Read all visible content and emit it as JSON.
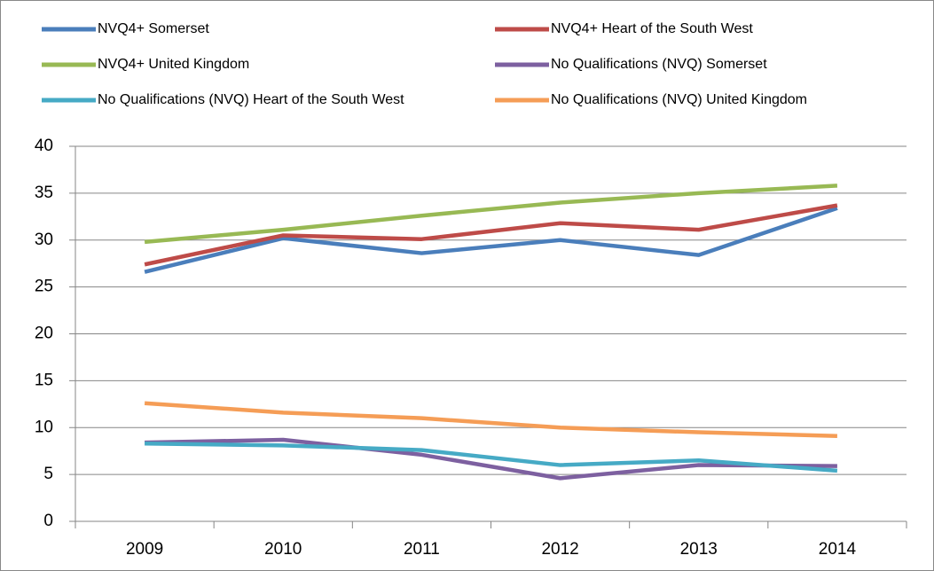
{
  "chart_data": {
    "type": "line",
    "categories": [
      "2009",
      "2010",
      "2011",
      "2012",
      "2013",
      "2014"
    ],
    "series": [
      {
        "name": "NVQ4+ Somerset",
        "color": "#4a7ebb",
        "values": [
          26.6,
          30.2,
          28.6,
          30.0,
          28.4,
          33.4
        ]
      },
      {
        "name": "NVQ4+ Heart of the South West",
        "color": "#be4b48",
        "values": [
          27.4,
          30.5,
          30.1,
          31.8,
          31.1,
          33.7
        ]
      },
      {
        "name": "NVQ4+ United Kingdom",
        "color": "#98b954",
        "values": [
          29.8,
          31.1,
          32.6,
          34.0,
          35.0,
          35.8
        ]
      },
      {
        "name": "No Qualifications (NVQ) Somerset",
        "color": "#7d60a0",
        "values": [
          8.4,
          8.7,
          7.1,
          4.6,
          6.0,
          5.9
        ]
      },
      {
        "name": "No Qualifications (NVQ) Heart of the South West",
        "color": "#46aac5",
        "values": [
          8.3,
          8.1,
          7.6,
          6.0,
          6.5,
          5.4
        ]
      },
      {
        "name": "No Qualifications (NVQ) United Kingdom",
        "color": "#f59d56",
        "values": [
          12.6,
          11.6,
          11.0,
          10.0,
          9.5,
          9.1
        ]
      }
    ],
    "ylim": [
      0,
      40
    ],
    "yticks": [
      0,
      5,
      10,
      15,
      20,
      25,
      30,
      35,
      40
    ],
    "grid": true,
    "legend": "top"
  }
}
